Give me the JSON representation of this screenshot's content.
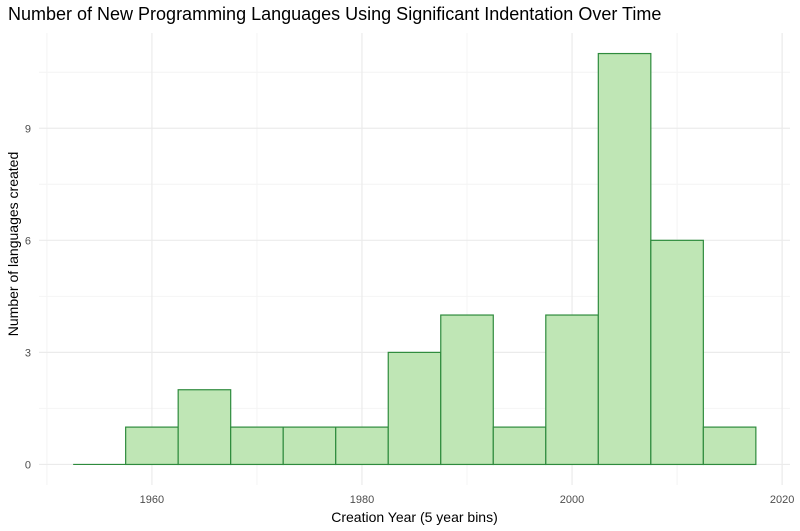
{
  "chart_data": {
    "type": "bar",
    "title": "Number of New Programming Languages Using Significant Indentation Over Time",
    "xlabel": "Creation Year (5 year bins)",
    "ylabel": "Number of languages created",
    "bin_width": 5,
    "bins": [
      {
        "start": 1952.5,
        "end": 1957.5,
        "count": 0
      },
      {
        "start": 1957.5,
        "end": 1962.5,
        "count": 1
      },
      {
        "start": 1962.5,
        "end": 1967.5,
        "count": 2
      },
      {
        "start": 1967.5,
        "end": 1972.5,
        "count": 1
      },
      {
        "start": 1972.5,
        "end": 1977.5,
        "count": 1
      },
      {
        "start": 1977.5,
        "end": 1982.5,
        "count": 1
      },
      {
        "start": 1982.5,
        "end": 1987.5,
        "count": 3
      },
      {
        "start": 1987.5,
        "end": 1992.5,
        "count": 4
      },
      {
        "start": 1992.5,
        "end": 1997.5,
        "count": 1
      },
      {
        "start": 1997.5,
        "end": 2002.5,
        "count": 4
      },
      {
        "start": 2002.5,
        "end": 2007.5,
        "count": 11
      },
      {
        "start": 2007.5,
        "end": 2012.5,
        "count": 6
      },
      {
        "start": 2012.5,
        "end": 2017.5,
        "count": 1
      }
    ],
    "xlim": [
      1949.25,
      2020.75
    ],
    "ylim": [
      -0.55,
      11.55
    ],
    "x_ticks": [
      1960,
      1980,
      2000,
      2020
    ],
    "x_minor_ticks": [
      1950,
      1970,
      1990,
      2010
    ],
    "y_ticks": [
      0,
      3,
      6,
      9
    ],
    "y_minor_ticks": [
      1.5,
      4.5,
      7.5,
      10.5
    ],
    "grid": true,
    "colors": {
      "bar_fill": "#bfe6b5",
      "bar_stroke": "#2e8b3d",
      "grid_major": "#ebebeb",
      "grid_minor": "#f4f4f4",
      "background": "#ffffff"
    }
  }
}
